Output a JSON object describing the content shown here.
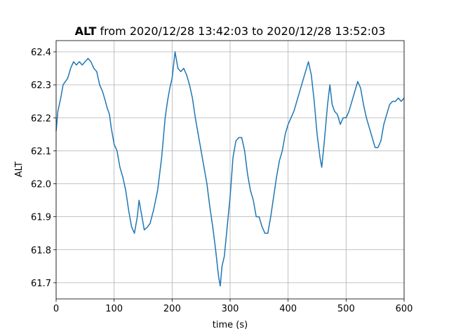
{
  "chart_data": {
    "type": "line",
    "title_bold": "ALT",
    "title": "from 2020/12/28 13:42:03 to 2020/12/28 13:52:03",
    "xlabel": "time (s)",
    "ylabel": "ALT",
    "xlim": [
      0,
      600
    ],
    "xticks": [
      0,
      100,
      200,
      300,
      400,
      500,
      600
    ],
    "ylim": [
      61.651,
      62.434
    ],
    "yticks": [
      61.7,
      61.8,
      61.9,
      {
        "value": 62,
        "label": "62.0"
      },
      62.1,
      62.2,
      62.3,
      62.4
    ],
    "grid": true,
    "series": [
      {
        "color": "#1f77b4",
        "x": [
          0,
          3,
          8,
          12,
          20,
          25,
          30,
          35,
          40,
          45,
          50,
          55,
          60,
          65,
          70,
          75,
          80,
          85,
          88,
          92,
          95,
          100,
          105,
          110,
          115,
          120,
          125,
          130,
          135,
          140,
          143,
          148,
          152,
          158,
          162,
          168,
          175,
          182,
          188,
          192,
          196,
          200,
          205,
          210,
          215,
          220,
          225,
          230,
          235,
          240,
          245,
          250,
          255,
          260,
          265,
          270,
          275,
          280,
          283,
          286,
          290,
          295,
          300,
          305,
          310,
          315,
          320,
          325,
          330,
          335,
          340,
          345,
          350,
          355,
          360,
          365,
          370,
          375,
          380,
          385,
          390,
          395,
          400,
          405,
          410,
          415,
          420,
          425,
          430,
          435,
          440,
          445,
          450,
          455,
          458,
          462,
          468,
          472,
          476,
          480,
          485,
          490,
          495,
          500,
          505,
          510,
          515,
          520,
          525,
          530,
          535,
          540,
          545,
          550,
          555,
          560,
          565,
          570,
          575,
          580,
          585,
          590,
          595,
          600
        ],
        "values": [
          62.16,
          62.22,
          62.26,
          62.3,
          62.32,
          62.35,
          62.37,
          62.36,
          62.37,
          62.36,
          62.37,
          62.38,
          62.37,
          62.35,
          62.34,
          62.3,
          62.28,
          62.25,
          62.23,
          62.21,
          62.17,
          62.12,
          62.1,
          62.05,
          62.02,
          61.98,
          61.92,
          61.87,
          61.85,
          61.9,
          61.95,
          61.9,
          61.86,
          61.87,
          61.88,
          61.92,
          61.98,
          62.08,
          62.2,
          62.25,
          62.29,
          62.32,
          62.4,
          62.35,
          62.34,
          62.35,
          62.33,
          62.3,
          62.26,
          62.2,
          62.15,
          62.1,
          62.05,
          62.0,
          61.93,
          61.87,
          61.8,
          61.72,
          61.69,
          61.75,
          61.78,
          61.87,
          61.96,
          62.08,
          62.13,
          62.14,
          62.14,
          62.1,
          62.03,
          61.98,
          61.95,
          61.9,
          61.9,
          61.87,
          61.85,
          61.85,
          61.9,
          61.96,
          62.02,
          62.07,
          62.1,
          62.15,
          62.18,
          62.2,
          62.22,
          62.25,
          62.28,
          62.31,
          62.34,
          62.37,
          62.33,
          62.25,
          62.15,
          62.08,
          62.05,
          62.12,
          62.24,
          62.3,
          62.24,
          62.22,
          62.21,
          62.18,
          62.2,
          62.2,
          62.22,
          62.25,
          62.28,
          62.31,
          62.29,
          62.24,
          62.2,
          62.17,
          62.14,
          62.11,
          62.11,
          62.13,
          62.18,
          62.21,
          62.24,
          62.25,
          62.25,
          62.26,
          62.25,
          62.26
        ]
      }
    ]
  }
}
